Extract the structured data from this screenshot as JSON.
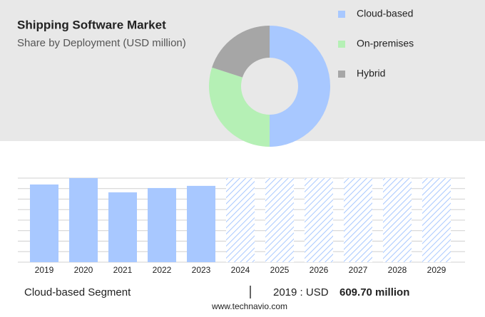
{
  "header": {
    "title": "Shipping Software Market",
    "subtitle": "Share by Deployment (USD million)"
  },
  "chart_data": [
    {
      "type": "donut",
      "categories": [
        "Cloud-based",
        "On-premises",
        "Hybrid"
      ],
      "values": [
        50,
        30,
        20
      ],
      "colors": [
        "#a8c8ff",
        "#b5f0b5",
        "#a6a6a6"
      ]
    },
    {
      "type": "bar",
      "categories": [
        "2019",
        "2020",
        "2021",
        "2022",
        "2023",
        "2024",
        "2025",
        "2026",
        "2027",
        "2028",
        "2029"
      ],
      "values": [
        609.7,
        660,
        548,
        582,
        599,
        null,
        null,
        null,
        null,
        null,
        null
      ],
      "value_labels": [
        "609.70 million",
        null,
        null,
        null,
        null,
        null,
        null,
        null,
        null,
        null,
        null
      ],
      "color": "#a8c8ff",
      "ylim": [
        0,
        660
      ],
      "yticks": [
        0,
        82.5,
        165,
        247.5,
        330,
        412.5,
        495,
        577.5,
        660
      ],
      "grid": true
    }
  ],
  "footer": {
    "segment": "Cloud-based Segment",
    "prefix": "2019 : USD",
    "source": "www.technavio.com"
  }
}
